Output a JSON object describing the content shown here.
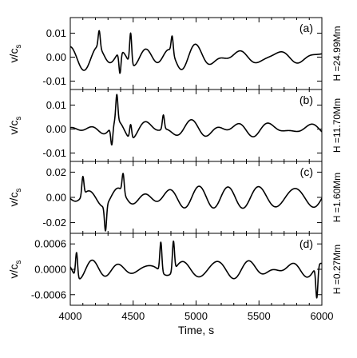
{
  "chart_data": {
    "type": "line",
    "xlabel": "Time, s",
    "xlim": [
      4000,
      6000
    ],
    "xticks": [
      4000,
      4500,
      5000,
      5500,
      6000
    ],
    "ylabel_main": "v/c",
    "ylabel_sub": "s",
    "panels": [
      {
        "tag": "(a)",
        "side_label": "H =24.99Mm",
        "ylim": [
          -0.0135,
          0.0165
        ],
        "yticks": [
          -0.01,
          0.0,
          0.01
        ],
        "ytick_labels": [
          "-0.01",
          "0.00",
          "0.01"
        ],
        "amplitude": 0.005,
        "seed": 3,
        "spikes": [
          [
            4480,
            0.013
          ],
          [
            4395,
            -0.009
          ],
          [
            4230,
            0.007
          ],
          [
            4810,
            0.007
          ]
        ]
      },
      {
        "tag": "(b)",
        "side_label": "H =11.70Mm",
        "ylim": [
          -0.0135,
          0.0165
        ],
        "yticks": [
          -0.01,
          0.0,
          0.01
        ],
        "ytick_labels": [
          "-0.01",
          "0.00",
          "0.01"
        ],
        "amplitude": 0.0045,
        "seed": 7,
        "spikes": [
          [
            4370,
            0.011
          ],
          [
            4330,
            -0.008
          ],
          [
            4480,
            0.006
          ],
          [
            4740,
            0.006
          ]
        ]
      },
      {
        "tag": "(c)",
        "side_label": "H =1.60Mm",
        "ylim": [
          -0.0285,
          0.0285
        ],
        "yticks": [
          -0.02,
          0.0,
          0.02
        ],
        "ytick_labels": [
          "-0.02",
          "0.00",
          "0.02"
        ],
        "amplitude": 0.011,
        "seed": 11,
        "spikes": [
          [
            4280,
            -0.02
          ],
          [
            4420,
            0.015
          ],
          [
            4100,
            0.015
          ]
        ]
      },
      {
        "tag": "(d)",
        "side_label": "H =0.27Mm",
        "ylim": [
          -0.00085,
          0.00085
        ],
        "yticks": [
          -0.0006,
          0.0,
          0.0006
        ],
        "ytick_labels": [
          "-0.0006",
          "0.0000",
          "0.0006"
        ],
        "amplitude": 0.0003,
        "seed": 19,
        "spikes": [
          [
            4820,
            0.0007
          ],
          [
            5960,
            -0.00075
          ],
          [
            4050,
            0.0006
          ],
          [
            4720,
            0.0007
          ]
        ]
      }
    ]
  }
}
